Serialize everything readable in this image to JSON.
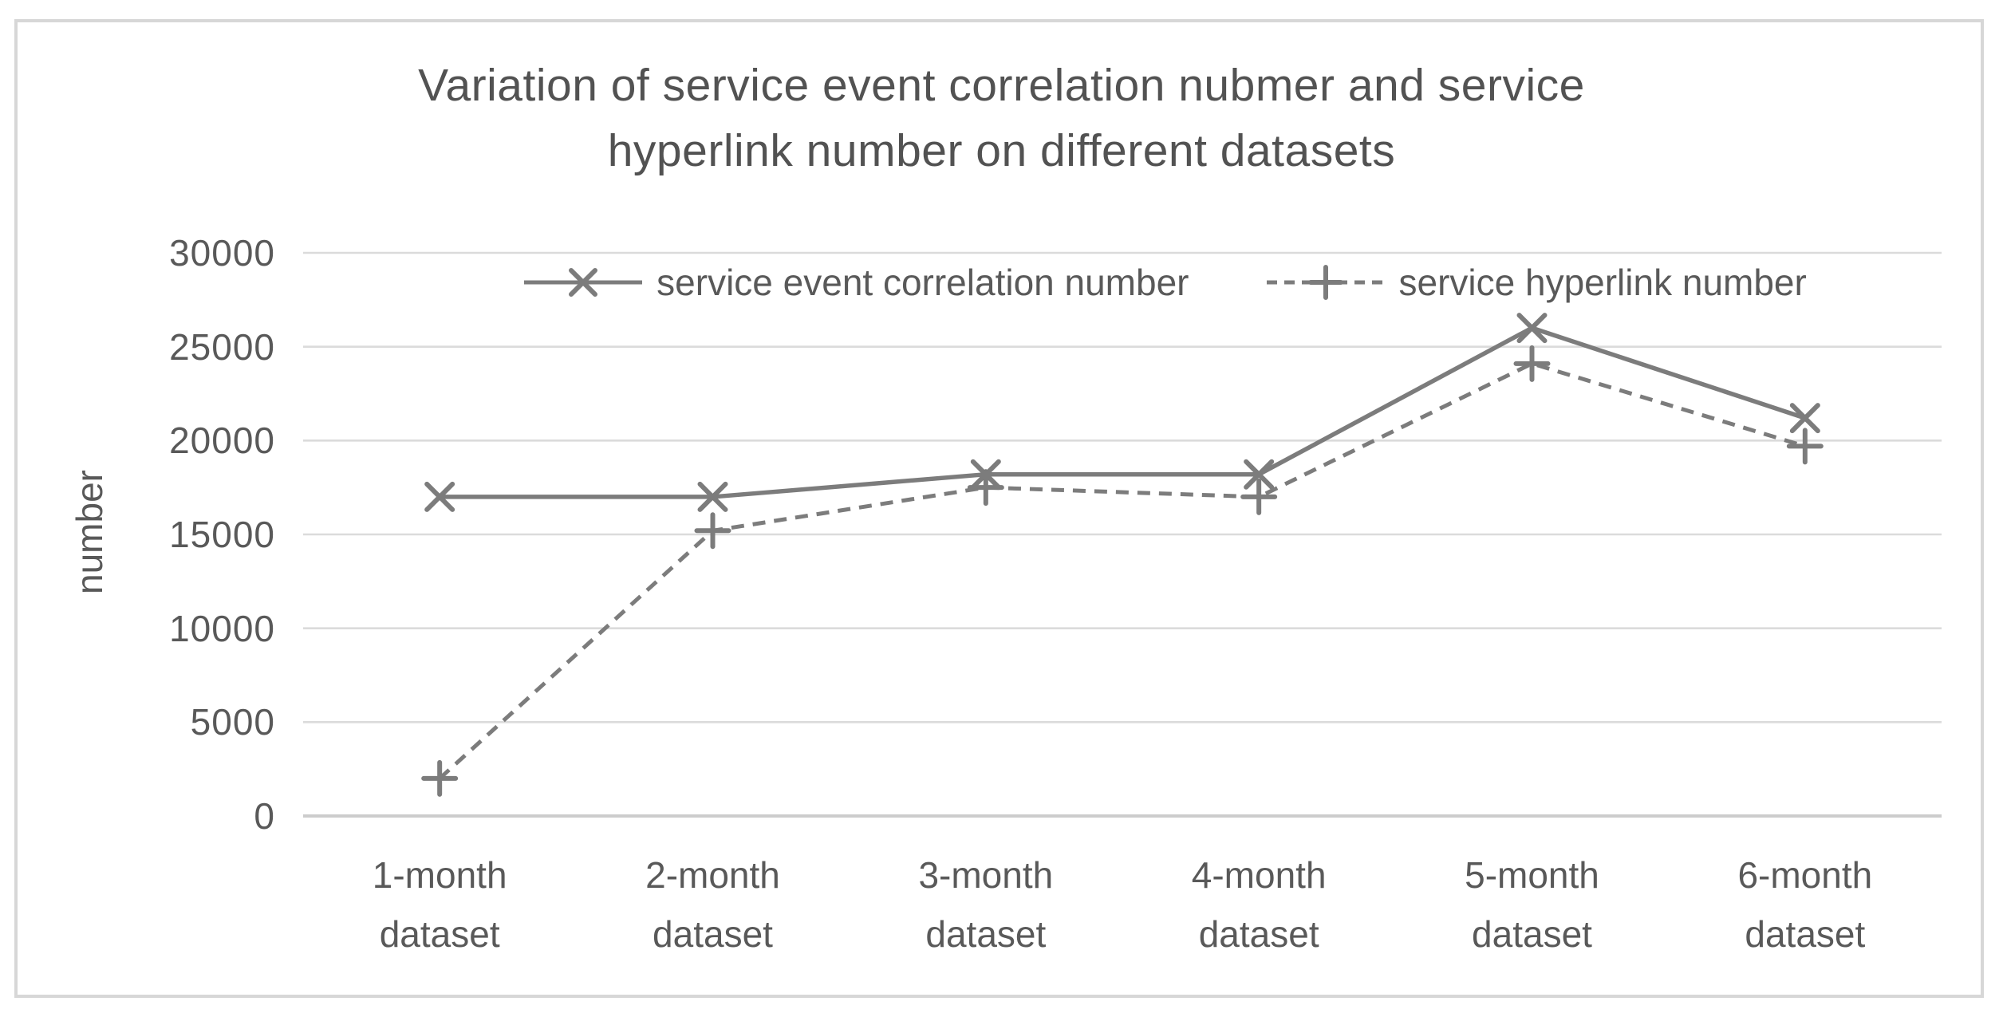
{
  "frame": {
    "border_color": "#d7d7d7",
    "background": "#ffffff"
  },
  "chart_data": {
    "type": "line",
    "title": "Variation of service event correlation nubmer and service hyperlink number on different datasets",
    "title_lines": [
      "Variation of service event correlation nubmer and service",
      "hyperlink number on different datasets"
    ],
    "xlabel": "",
    "ylabel": "number",
    "ylim": [
      0,
      30000
    ],
    "yticks": [
      0,
      5000,
      10000,
      15000,
      20000,
      25000,
      30000
    ],
    "grid": true,
    "legend_position": "top-center inside plot",
    "categories": [
      "1-month dataset",
      "2-month dataset",
      "3-month dataset",
      "4-month dataset",
      "5-month dataset",
      "6-month dataset"
    ],
    "series": [
      {
        "name": "service event correlation number",
        "values": [
          17000,
          17000,
          18200,
          18200,
          26000,
          21200
        ],
        "line_style": "solid",
        "marker": "x",
        "color": "#7c7c7c"
      },
      {
        "name": "service hyperlink number",
        "values": [
          2000,
          15200,
          17500,
          17000,
          24100,
          19700
        ],
        "line_style": "dashed",
        "marker": "plus",
        "color": "#7c7c7c"
      }
    ],
    "colors": {
      "title_text": "#525252",
      "axis_text": "#595959",
      "gridline": "#dbdbdb",
      "axis_line": "#cccccc"
    }
  }
}
